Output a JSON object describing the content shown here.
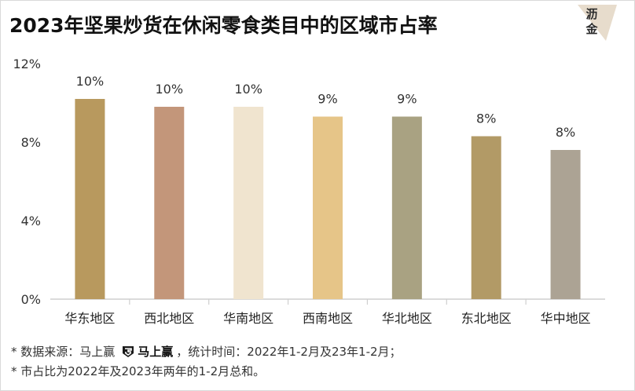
{
  "title": "2023年坚果炒货在休闲零食类目中的区域市占率",
  "logo": {
    "line1": "沥",
    "line2": "金",
    "icon": "lijin-logo-icon"
  },
  "chart_data": {
    "type": "bar",
    "categories": [
      "华东地区",
      "西北地区",
      "华南地区",
      "西南地区",
      "华北地区",
      "东北地区",
      "华中地区"
    ],
    "values": [
      10.2,
      9.8,
      9.8,
      9.3,
      9.3,
      8.3,
      7.6
    ],
    "data_labels": [
      "10%",
      "10%",
      "10%",
      "9%",
      "9%",
      "8%",
      "8%"
    ],
    "colors": [
      "#b8995e",
      "#c3967a",
      "#f0e4cf",
      "#e6c588",
      "#a9a282",
      "#b29a66",
      "#aca394"
    ],
    "ylim": [
      0,
      12
    ],
    "yticks": [
      0,
      4,
      8,
      12
    ],
    "ytick_labels": [
      "0%",
      "4%",
      "8%",
      "12%"
    ],
    "grid": false,
    "legend": "none"
  },
  "footer": {
    "line1_prefix": "* 数据来源：马上赢",
    "brand_name": "马上赢",
    "brand_icon": "mashangying-logo-icon",
    "line1_suffix": "，统计时间：2022年1-2月及23年1-2月；",
    "line2": "* 市占比为2022年及2023年两年的1-2月总和。"
  }
}
